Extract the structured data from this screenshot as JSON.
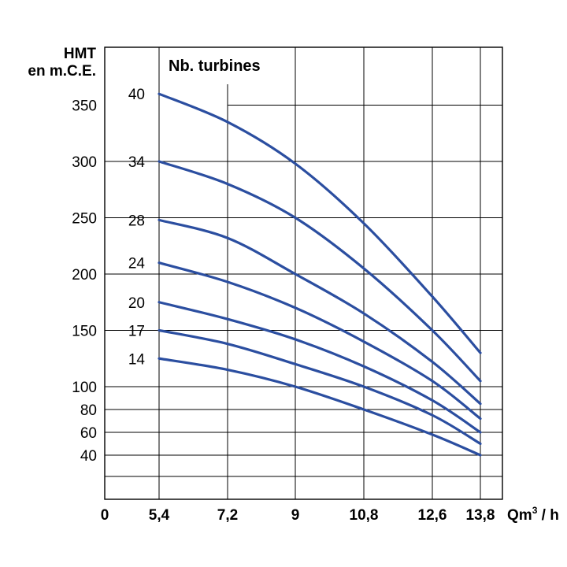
{
  "chart_data": {
    "type": "line",
    "ylabel_line1": "HMT",
    "ylabel_line2": "en m.C.E.",
    "xlabel_main": "Qm",
    "xlabel_sup": "3",
    "xlabel_tail": " / h",
    "legend_title": "Nb. turbines",
    "x_ticks": [
      "0",
      "5,4",
      "7,2",
      "9",
      "10,8",
      "12,6",
      "13,8"
    ],
    "y_ticks": [
      "40",
      "60",
      "80",
      "100",
      "150",
      "200",
      "250",
      "300",
      "350"
    ],
    "series": [
      {
        "name": "40",
        "x": [
          5.4,
          7.2,
          9,
          10.8,
          12.6,
          13.8
        ],
        "y": [
          360,
          335,
          298,
          245,
          180,
          130
        ]
      },
      {
        "name": "34",
        "x": [
          5.4,
          7.2,
          9,
          10.8,
          12.6,
          13.8
        ],
        "y": [
          300,
          280,
          250,
          205,
          150,
          105
        ]
      },
      {
        "name": "28",
        "x": [
          5.4,
          7.2,
          9,
          10.8,
          12.6,
          13.8
        ],
        "y": [
          248,
          232,
          200,
          165,
          122,
          85
        ]
      },
      {
        "name": "24",
        "x": [
          5.4,
          7.2,
          9,
          10.8,
          12.6,
          13.8
        ],
        "y": [
          210,
          193,
          170,
          140,
          105,
          72
        ]
      },
      {
        "name": "20",
        "x": [
          5.4,
          7.2,
          9,
          10.8,
          12.6,
          13.8
        ],
        "y": [
          175,
          160,
          142,
          118,
          88,
          60
        ]
      },
      {
        "name": "17",
        "x": [
          5.4,
          7.2,
          9,
          10.8,
          12.6,
          13.8
        ],
        "y": [
          150,
          138,
          120,
          100,
          75,
          50
        ]
      },
      {
        "name": "14",
        "x": [
          5.4,
          7.2,
          9,
          10.8,
          12.6,
          13.8
        ],
        "y": [
          125,
          115,
          100,
          80,
          58,
          40
        ]
      }
    ],
    "curve_color": "#2b4ea0",
    "grid": true
  }
}
